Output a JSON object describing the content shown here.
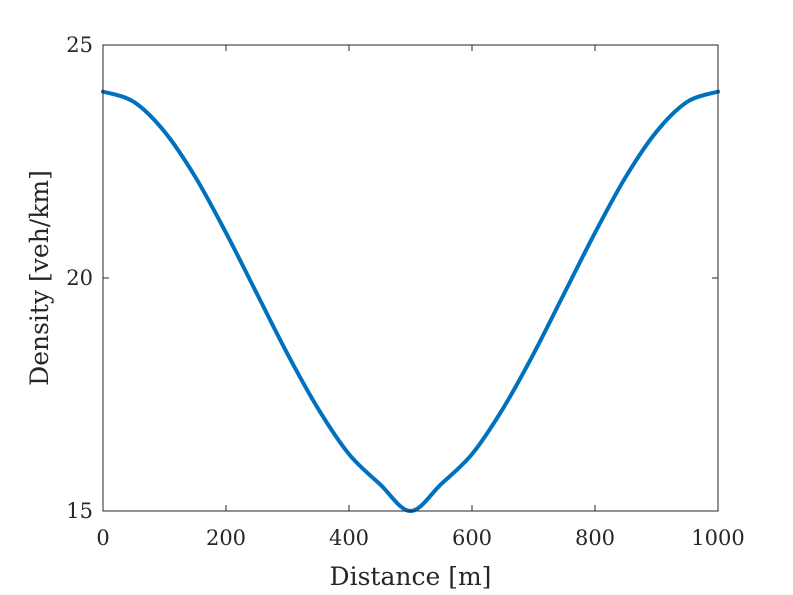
{
  "chart_data": {
    "type": "line",
    "title": "",
    "xlabel": "Distance [m]",
    "ylabel": "Density [veh/km]",
    "xlim": [
      0,
      1000
    ],
    "ylim": [
      15,
      25
    ],
    "xticks": [
      0,
      200,
      400,
      600,
      800,
      1000
    ],
    "yticks": [
      15,
      20,
      25
    ],
    "xtick_labels": [
      "0",
      "200",
      "400",
      "600",
      "800",
      "1000"
    ],
    "ytick_labels": [
      "15",
      "20",
      "25"
    ],
    "grid": false,
    "legend": "none",
    "series": [
      {
        "color": "#0072BD",
        "x": [
          0,
          50,
          100,
          150,
          200,
          250,
          300,
          350,
          400,
          450,
          500,
          550,
          600,
          650,
          700,
          750,
          800,
          850,
          900,
          950,
          1000
        ],
        "y": [
          24.0,
          23.78,
          23.14,
          22.17,
          20.97,
          19.67,
          18.37,
          17.19,
          16.22,
          15.58,
          15.0,
          15.58,
          16.22,
          17.19,
          18.37,
          19.67,
          20.97,
          22.17,
          23.14,
          23.78,
          24.0
        ]
      }
    ]
  }
}
